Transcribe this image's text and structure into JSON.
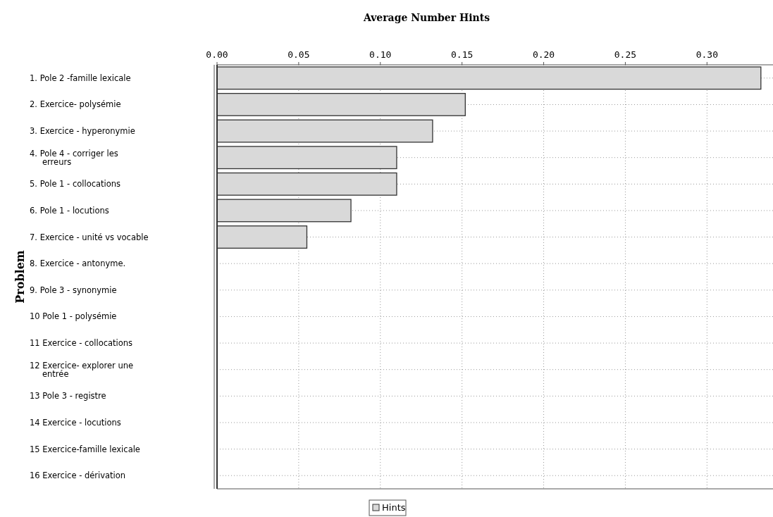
{
  "chart_data": {
    "type": "bar",
    "orientation": "horizontal",
    "xlabel": "Average Number Hints",
    "ylabel": "Problem",
    "categories": [
      "1. Pole 2 -famille lexicale",
      "2. Exercice- polysémie",
      "3. Exercice - hyperonymie",
      "4. Pole 4 - corriger les erreurs",
      "5. Pole 1 - collocations",
      "6. Pole 1 - locutions",
      "7. Exercice - unité vs vocable",
      "8. Exercice - antonyme.",
      "9. Pole 3 - synonymie",
      "10 Pole 1 - polysémie",
      "11 Exercice - collocations",
      "12 Exercice- explorer une entrée",
      "13 Pole 3 - registre",
      "14 Exercice - locutions",
      "15 Exercice-famille lexicale",
      "16 Exercice - dérivation"
    ],
    "series": [
      {
        "name": "Hints",
        "color": "#d9d9d9",
        "values": [
          0.333,
          0.152,
          0.132,
          0.11,
          0.11,
          0.082,
          0.055,
          0,
          0,
          0,
          0,
          0,
          0,
          0,
          0,
          0
        ]
      }
    ],
    "xlim": [
      0,
      0.343
    ],
    "xticks": [
      {
        "value": 0,
        "label": "0.00"
      },
      {
        "value": 0.05,
        "label": "0.05"
      },
      {
        "value": 0.1,
        "label": "0.10"
      },
      {
        "value": 0.15,
        "label": "0.15"
      },
      {
        "value": 0.2,
        "label": "0.20"
      },
      {
        "value": 0.25,
        "label": "0.25"
      },
      {
        "value": 0.3,
        "label": "0.30"
      }
    ],
    "grid": true,
    "legend": "bottom"
  }
}
